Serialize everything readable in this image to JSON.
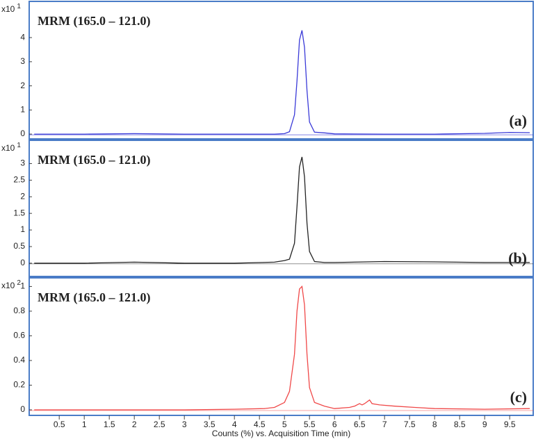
{
  "chart_data": [
    {
      "type": "line",
      "title": "MRM (165.0 – 121.0)",
      "panel_label": "(a)",
      "y_scale_label": "x10",
      "y_scale_exponent": "1",
      "xlim": [
        -0.1,
        9.97
      ],
      "ylim": [
        -0.2,
        5.5
      ],
      "yticks": [
        0,
        1,
        2,
        3,
        4
      ],
      "series": [
        {
          "color": "#3a3ad8",
          "x": [
            0,
            1,
            2,
            3,
            4,
            4.8,
            5.0,
            5.1,
            5.2,
            5.25,
            5.3,
            5.35,
            5.4,
            5.45,
            5.5,
            5.6,
            5.8,
            6,
            7,
            8,
            9,
            9.5,
            9.9
          ],
          "values": [
            0,
            0,
            0.02,
            0,
            0,
            0,
            0.02,
            0.1,
            0.8,
            2.2,
            3.9,
            4.3,
            3.6,
            1.8,
            0.5,
            0.08,
            0.05,
            0.01,
            0,
            0,
            0.03,
            0.07,
            0.06
          ]
        }
      ]
    },
    {
      "type": "line",
      "title": "MRM (165.0 – 121.0)",
      "panel_label": "(b)",
      "y_scale_label": "x10",
      "y_scale_exponent": "1",
      "xlim": [
        -0.1,
        9.97
      ],
      "ylim": [
        -0.4,
        3.7
      ],
      "yticks": [
        0,
        0.5,
        1,
        1.5,
        2,
        2.5,
        3
      ],
      "series": [
        {
          "color": "#222222",
          "x": [
            0,
            1,
            2,
            3,
            4,
            4.8,
            5.0,
            5.1,
            5.2,
            5.25,
            5.3,
            5.35,
            5.4,
            5.45,
            5.5,
            5.6,
            5.8,
            6,
            7,
            8,
            9,
            9.5,
            9.9
          ],
          "values": [
            0,
            0,
            0.03,
            0,
            0,
            0.03,
            0.08,
            0.12,
            0.6,
            1.7,
            2.9,
            3.2,
            2.6,
            1.2,
            0.35,
            0.05,
            0.02,
            0.02,
            0.05,
            0.04,
            0.02,
            0.02,
            0.02
          ]
        }
      ]
    },
    {
      "type": "line",
      "title": "MRM (165.0 – 121.0)",
      "panel_label": "(c)",
      "y_scale_label": "x10",
      "y_scale_exponent": "2",
      "xlim": [
        -0.1,
        9.97
      ],
      "ylim": [
        -0.045,
        1.07
      ],
      "yticks": [
        0,
        0.2,
        0.4,
        0.6,
        0.8,
        1
      ],
      "x_label": "Counts (%) vs. Acquisition Time (min)",
      "xticks": [
        0.5,
        1,
        1.5,
        2,
        2.5,
        3,
        3.5,
        4,
        4.5,
        5,
        5.5,
        6,
        6.5,
        7,
        7.5,
        8,
        8.5,
        9,
        9.5
      ],
      "series": [
        {
          "color": "#f04848",
          "x": [
            0,
            1,
            2,
            3,
            4,
            4.6,
            4.8,
            5.0,
            5.1,
            5.2,
            5.25,
            5.3,
            5.35,
            5.4,
            5.45,
            5.5,
            5.6,
            5.8,
            6.0,
            6.3,
            6.4,
            6.5,
            6.55,
            6.6,
            6.7,
            6.75,
            6.9,
            7.2,
            7.6,
            8,
            9,
            9.9
          ],
          "values": [
            0,
            0,
            0,
            0,
            0.005,
            0.01,
            0.02,
            0.06,
            0.15,
            0.45,
            0.8,
            0.98,
            1.0,
            0.85,
            0.45,
            0.18,
            0.06,
            0.03,
            0.01,
            0.02,
            0.03,
            0.05,
            0.04,
            0.05,
            0.08,
            0.05,
            0.04,
            0.03,
            0.02,
            0.01,
            0.005,
            0.01
          ]
        }
      ]
    }
  ]
}
